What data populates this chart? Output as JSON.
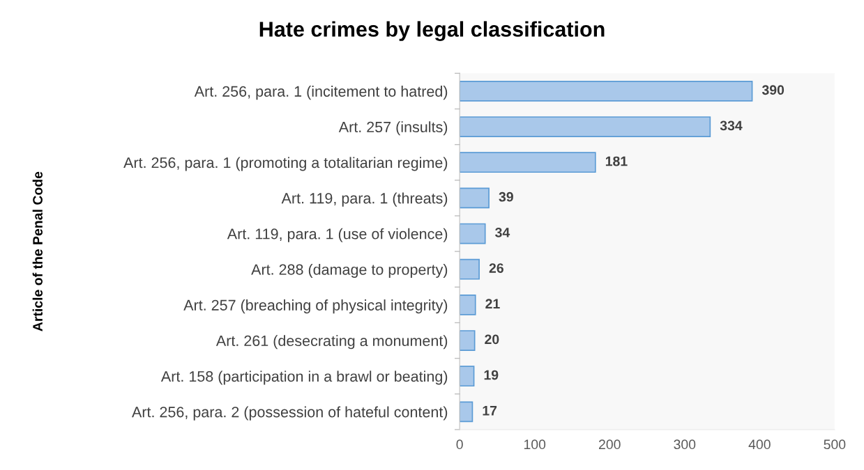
{
  "chart_data": {
    "type": "bar",
    "orientation": "horizontal",
    "title": "Hate crimes by legal classification",
    "annotations": [
      "Article of the Penal Code"
    ],
    "categories": [
      "Art. 256, para. 1 (incitement to hatred)",
      "Art. 257 (insults)",
      "Art. 256, para. 1 (promoting a totalitarian regime)",
      "Art. 119, para. 1 (threats)",
      "Art. 119, para. 1 (use of violence)",
      "Art. 288 (damage to property)",
      "Art. 257 (breaching of physical integrity)",
      "Art. 261 (desecrating a monument)",
      "Art. 158 (participation in a brawl or beating)",
      "Art. 256, para. 2 (possession of hateful content)"
    ],
    "values": [
      390,
      334,
      181,
      39,
      34,
      26,
      21,
      20,
      19,
      17
    ],
    "color": "#a9c8ea",
    "xlim": [
      0,
      500
    ],
    "xticks": [
      0,
      100,
      200,
      300,
      400,
      500
    ],
    "data_labels": true,
    "grid": false,
    "legend": false
  }
}
